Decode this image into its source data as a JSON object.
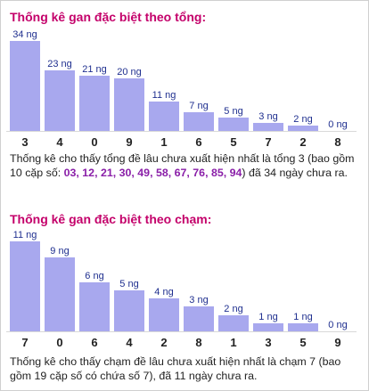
{
  "sections": [
    {
      "title": "Thống kê gan đặc biệt theo tổng:",
      "description": {
        "before": "Thống kê cho thấy tổng đề lâu chưa xuất hiện nhất là tổng 3 (bao gồm 10 cặp số: ",
        "highlight": "03, 12, 21, 30, 49, 58, 67, 76, 85, 94",
        "after": ") đã 34 ngày chưa ra."
      }
    },
    {
      "title": "Thống kê gan đặc biệt theo chạm:",
      "description": {
        "before": "Thống kê cho thấy chạm đề lâu chưa xuất hiện nhất là chạm 7 (bao gồm 19 cặp số có chứa số 7), đã 11 ngày chưa ra.",
        "highlight": "",
        "after": ""
      }
    }
  ],
  "chart_data": [
    {
      "type": "bar",
      "categories": [
        "3",
        "4",
        "0",
        "9",
        "1",
        "6",
        "5",
        "7",
        "2",
        "8"
      ],
      "values": [
        34,
        23,
        21,
        20,
        11,
        7,
        5,
        3,
        2,
        0
      ],
      "data_labels": [
        "34 ng",
        "23 ng",
        "21 ng",
        "20 ng",
        "11 ng",
        "7 ng",
        "5 ng",
        "3 ng",
        "2 ng",
        "0 ng"
      ],
      "ylim": [
        0,
        34
      ],
      "bar_color": "#a8a8ee",
      "label_color": "#1f2f8f"
    },
    {
      "type": "bar",
      "categories": [
        "7",
        "0",
        "6",
        "4",
        "2",
        "8",
        "1",
        "3",
        "5",
        "9"
      ],
      "values": [
        11,
        9,
        6,
        5,
        4,
        3,
        2,
        1,
        1,
        0
      ],
      "data_labels": [
        "11 ng",
        "9 ng",
        "6 ng",
        "5 ng",
        "4 ng",
        "3 ng",
        "2 ng",
        "1 ng",
        "1 ng",
        "0 ng"
      ],
      "ylim": [
        0,
        11
      ],
      "bar_color": "#a8a8ee",
      "label_color": "#1f2f8f"
    }
  ]
}
